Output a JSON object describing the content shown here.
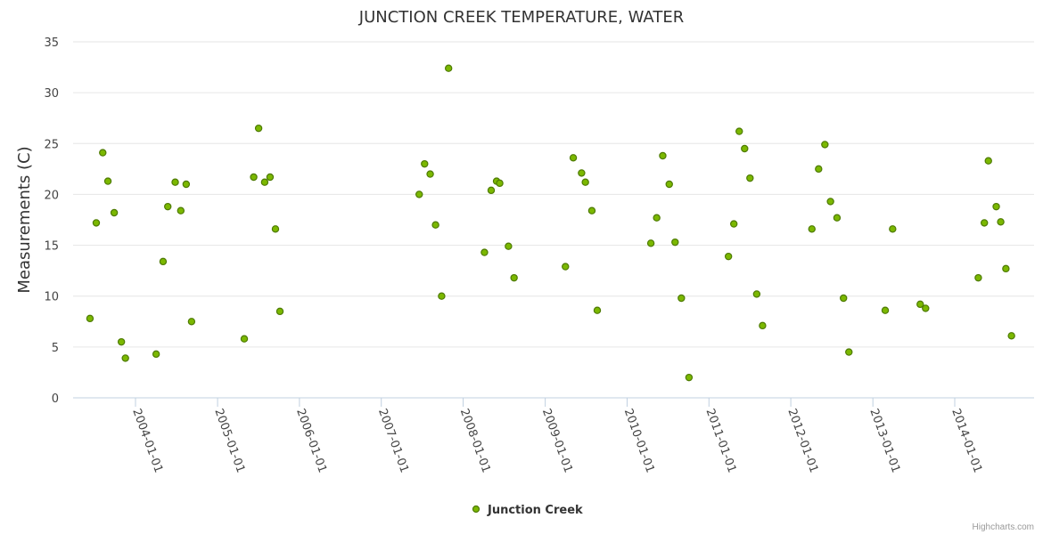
{
  "colors": {
    "point_fill": "#7bb800",
    "point_stroke": "#4d7a00",
    "grid": "#e6e6e6",
    "axis": "#c0d0e0"
  },
  "credits": "Highcharts.com",
  "chart_data": {
    "type": "scatter",
    "title": "JUNCTION CREEK TEMPERATURE, WATER",
    "xlabel": "",
    "ylabel": "Measurements (C)",
    "ylim": [
      0,
      35
    ],
    "yticks": [
      "0",
      "5",
      "10",
      "15",
      "20",
      "25",
      "30",
      "35"
    ],
    "xticks": [
      "2004-01-01",
      "2005-01-01",
      "2006-01-01",
      "2007-01-01",
      "2008-01-01",
      "2009-01-01",
      "2010-01-01",
      "2011-01-01",
      "2012-01-01",
      "2013-01-01",
      "2014-01-01"
    ],
    "grid": true,
    "legend_position": "bottom-center",
    "series": [
      {
        "name": "Junction Creek",
        "points": [
          [
            "2003-06-12",
            7.8
          ],
          [
            "2003-07-10",
            17.2
          ],
          [
            "2003-08-08",
            24.1
          ],
          [
            "2003-08-31",
            21.3
          ],
          [
            "2003-09-28",
            18.2
          ],
          [
            "2003-10-30",
            5.5
          ],
          [
            "2003-11-17",
            3.9
          ],
          [
            "2004-04-02",
            4.3
          ],
          [
            "2004-05-03",
            13.4
          ],
          [
            "2004-05-24",
            18.8
          ],
          [
            "2004-06-26",
            21.2
          ],
          [
            "2004-07-21",
            18.4
          ],
          [
            "2004-08-14",
            21.0
          ],
          [
            "2004-09-07",
            7.5
          ],
          [
            "2005-04-30",
            5.8
          ],
          [
            "2005-06-11",
            21.7
          ],
          [
            "2005-07-03",
            26.5
          ],
          [
            "2005-07-30",
            21.2
          ],
          [
            "2005-08-23",
            21.7
          ],
          [
            "2005-09-16",
            16.6
          ],
          [
            "2005-10-06",
            8.5
          ],
          [
            "2007-06-19",
            20.0
          ],
          [
            "2007-07-13",
            23.0
          ],
          [
            "2007-08-07",
            22.0
          ],
          [
            "2007-08-31",
            17.0
          ],
          [
            "2007-09-27",
            10.0
          ],
          [
            "2007-10-28",
            32.4
          ],
          [
            "2008-04-05",
            14.3
          ],
          [
            "2008-05-05",
            20.4
          ],
          [
            "2008-05-29",
            21.3
          ],
          [
            "2008-06-12",
            21.1
          ],
          [
            "2008-07-21",
            14.9
          ],
          [
            "2008-08-15",
            11.8
          ],
          [
            "2009-04-01",
            12.9
          ],
          [
            "2009-05-06",
            23.6
          ],
          [
            "2009-06-12",
            22.1
          ],
          [
            "2009-06-29",
            21.2
          ],
          [
            "2009-07-28",
            18.4
          ],
          [
            "2009-08-21",
            8.6
          ],
          [
            "2010-04-17",
            15.2
          ],
          [
            "2010-05-13",
            17.7
          ],
          [
            "2010-06-09",
            23.8
          ],
          [
            "2010-07-08",
            21.0
          ],
          [
            "2010-08-03",
            15.3
          ],
          [
            "2010-08-31",
            9.8
          ],
          [
            "2010-10-04",
            2.0
          ],
          [
            "2011-03-29",
            13.9
          ],
          [
            "2011-04-22",
            17.1
          ],
          [
            "2011-05-16",
            26.2
          ],
          [
            "2011-06-09",
            24.5
          ],
          [
            "2011-07-03",
            21.6
          ],
          [
            "2011-08-02",
            10.2
          ],
          [
            "2011-08-28",
            7.1
          ],
          [
            "2012-04-04",
            16.6
          ],
          [
            "2012-05-04",
            22.5
          ],
          [
            "2012-06-01",
            24.9
          ],
          [
            "2012-06-26",
            19.3
          ],
          [
            "2012-07-25",
            17.7
          ],
          [
            "2012-08-23",
            9.8
          ],
          [
            "2012-09-16",
            4.5
          ],
          [
            "2013-02-25",
            8.6
          ],
          [
            "2013-03-30",
            16.6
          ],
          [
            "2013-07-31",
            9.2
          ],
          [
            "2013-08-24",
            8.8
          ],
          [
            "2014-04-16",
            11.8
          ],
          [
            "2014-05-13",
            17.2
          ],
          [
            "2014-05-31",
            23.3
          ],
          [
            "2014-07-05",
            18.8
          ],
          [
            "2014-07-25",
            17.3
          ],
          [
            "2014-08-17",
            12.7
          ],
          [
            "2014-09-11",
            6.1
          ]
        ]
      }
    ]
  }
}
